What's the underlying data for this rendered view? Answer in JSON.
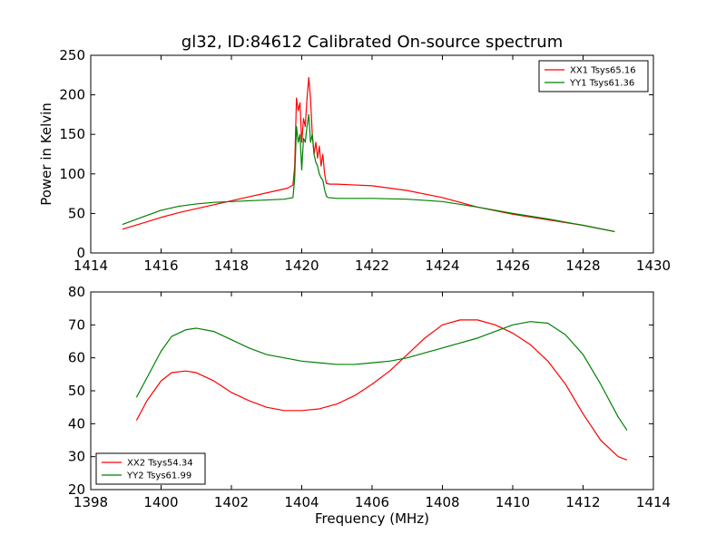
{
  "chart_data": [
    {
      "type": "line",
      "title": "gl32, ID:84612 Calibrated On-source spectrum",
      "xlabel": "",
      "ylabel": "Power in Kelvin",
      "xlim": [
        1414,
        1430
      ],
      "ylim": [
        0,
        250
      ],
      "xticks": [
        "1414",
        "1416",
        "1418",
        "1420",
        "1422",
        "1424",
        "1426",
        "1428",
        "1430"
      ],
      "yticks": [
        "0",
        "50",
        "100",
        "150",
        "200",
        "250"
      ],
      "legend_position": "top-right",
      "grid": false,
      "series": [
        {
          "name": "XX1 Tsys65.16",
          "color": "#ff0000",
          "x": [
            1414.9,
            1415.5,
            1416,
            1416.5,
            1417,
            1417.5,
            1418,
            1418.5,
            1419,
            1419.3,
            1419.6,
            1419.75,
            1419.8,
            1419.85,
            1419.9,
            1419.95,
            1420.0,
            1420.05,
            1420.1,
            1420.15,
            1420.2,
            1420.25,
            1420.3,
            1420.35,
            1420.4,
            1420.45,
            1420.5,
            1420.55,
            1420.6,
            1420.65,
            1420.7,
            1420.8,
            1421,
            1422,
            1423,
            1424,
            1425,
            1426,
            1427,
            1428,
            1428.9
          ],
          "y": [
            30,
            38,
            45,
            51,
            56,
            61,
            66,
            71,
            76,
            79,
            82,
            86,
            110,
            196,
            180,
            190,
            140,
            170,
            160,
            195,
            222,
            195,
            150,
            125,
            140,
            120,
            135,
            110,
            125,
            100,
            88,
            87,
            87,
            85,
            79,
            70,
            58,
            49,
            42,
            35,
            27
          ]
        },
        {
          "name": "YY1 Tsys61.36",
          "color": "#008000",
          "x": [
            1414.9,
            1415.5,
            1416,
            1416.5,
            1417,
            1417.5,
            1418,
            1418.5,
            1419,
            1419.5,
            1419.75,
            1419.8,
            1419.85,
            1419.9,
            1419.95,
            1420.0,
            1420.05,
            1420.1,
            1420.15,
            1420.2,
            1420.25,
            1420.3,
            1420.35,
            1420.4,
            1420.45,
            1420.5,
            1420.55,
            1420.6,
            1420.65,
            1420.7,
            1420.75,
            1421,
            1422,
            1423,
            1424,
            1425,
            1426,
            1427,
            1428,
            1428.9
          ],
          "y": [
            36,
            46,
            54,
            59,
            62,
            64,
            65,
            66,
            67,
            68,
            70,
            95,
            160,
            140,
            150,
            105,
            145,
            140,
            160,
            175,
            140,
            150,
            125,
            115,
            110,
            100,
            95,
            92,
            80,
            72,
            70,
            69,
            69,
            68,
            65,
            58,
            50,
            43,
            35,
            27
          ]
        }
      ]
    },
    {
      "type": "line",
      "title": "",
      "xlabel": "Frequency (MHz)",
      "ylabel": "",
      "xlim": [
        1398,
        1414
      ],
      "ylim": [
        20,
        80
      ],
      "xticks": [
        "1398",
        "1400",
        "1402",
        "1404",
        "1406",
        "1408",
        "1410",
        "1412",
        "1414"
      ],
      "yticks": [
        "20",
        "30",
        "40",
        "50",
        "60",
        "70",
        "80"
      ],
      "legend_position": "bottom-left",
      "grid": false,
      "series": [
        {
          "name": "XX2 Tsys54.34",
          "color": "#ff0000",
          "x": [
            1399.3,
            1399.6,
            1400,
            1400.3,
            1400.7,
            1401,
            1401.5,
            1402,
            1402.5,
            1403,
            1403.5,
            1404,
            1404.5,
            1405,
            1405.5,
            1406,
            1406.5,
            1407,
            1407.5,
            1408,
            1408.5,
            1409,
            1409.5,
            1410,
            1410.5,
            1411,
            1411.5,
            1412,
            1412.5,
            1413,
            1413.25
          ],
          "y": [
            41,
            47,
            53,
            55.5,
            56,
            55.5,
            53,
            49.5,
            47,
            45,
            44,
            44,
            44.5,
            46,
            48.5,
            52,
            56,
            61,
            66,
            70,
            71.5,
            71.5,
            70,
            67.5,
            64,
            59,
            52,
            43,
            35,
            30,
            29
          ]
        },
        {
          "name": "YY2 Tsys61.99",
          "color": "#008000",
          "x": [
            1399.3,
            1399.6,
            1400,
            1400.3,
            1400.7,
            1401,
            1401.5,
            1402,
            1402.5,
            1403,
            1403.5,
            1404,
            1404.5,
            1405,
            1405.5,
            1406,
            1406.5,
            1407,
            1407.5,
            1408,
            1408.5,
            1409,
            1409.5,
            1410,
            1410.5,
            1411,
            1411.5,
            1412,
            1412.5,
            1413,
            1413.25
          ],
          "y": [
            48,
            54,
            62,
            66.5,
            68.5,
            69,
            68,
            65.5,
            63,
            61,
            60,
            59,
            58.5,
            58,
            58,
            58.5,
            59,
            60,
            61.5,
            63,
            64.5,
            66,
            68,
            70,
            71,
            70.5,
            67,
            61,
            52,
            42,
            38
          ]
        }
      ]
    }
  ]
}
